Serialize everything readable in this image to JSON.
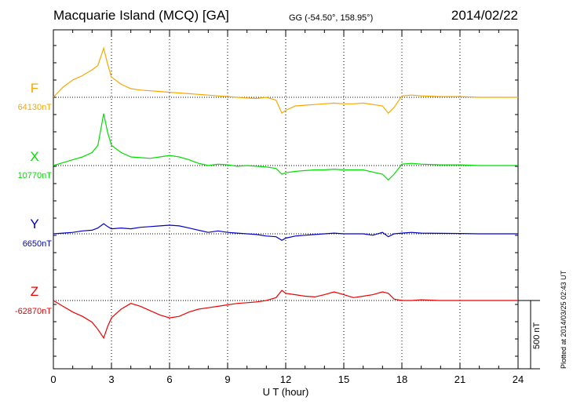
{
  "header": {
    "title": "Macquarie Island (MCQ)  [GA]",
    "coords": "GG (-54.50°, 158.95°)",
    "date": "2014/02/22"
  },
  "plotted_note": "Plotted at 2014/03/25 02:43 UT",
  "scale_label": "500 nT",
  "colors": {
    "F": "#f5a800",
    "X": "#00dd00",
    "Y": "#0000cc",
    "Z": "#ee0000"
  },
  "chart_data": {
    "type": "line",
    "xlabel": "U T (hour)",
    "xlim": [
      0,
      24
    ],
    "x_ticks": [
      0,
      3,
      6,
      9,
      12,
      15,
      18,
      21,
      24
    ],
    "scale_nT": 500,
    "channels": [
      {
        "name": "F",
        "baseline_label": "64130nT",
        "color": "#f5a800",
        "x": [
          0,
          0.5,
          1,
          1.5,
          2,
          2.3,
          2.6,
          2.8,
          3,
          3.5,
          4,
          4.5,
          5,
          5.5,
          6,
          6.5,
          7,
          7.5,
          8,
          8.5,
          9,
          9.5,
          10,
          10.5,
          11,
          11.5,
          11.8,
          12,
          12.5,
          13,
          13.5,
          14,
          14.5,
          15,
          15.5,
          16,
          16.5,
          17,
          17.3,
          17.6,
          18,
          18.5,
          19,
          20,
          21,
          22,
          23,
          24
        ],
        "y": [
          0,
          70,
          120,
          150,
          190,
          220,
          340,
          230,
          140,
          90,
          60,
          50,
          45,
          40,
          35,
          30,
          25,
          20,
          15,
          10,
          5,
          0,
          -5,
          -8,
          0,
          -20,
          -110,
          -90,
          -60,
          -55,
          -50,
          -45,
          -40,
          -45,
          -45,
          -40,
          -50,
          -60,
          -110,
          -70,
          10,
          15,
          10,
          5,
          5,
          0,
          0,
          0
        ]
      },
      {
        "name": "X",
        "baseline_label": "10770nT",
        "color": "#00dd00",
        "x": [
          0,
          0.5,
          1,
          1.5,
          2,
          2.3,
          2.6,
          2.8,
          3,
          3.5,
          4,
          4.5,
          5,
          5.5,
          6,
          6.5,
          7,
          7.5,
          8,
          8.5,
          9,
          9.5,
          10,
          10.5,
          11,
          11.5,
          11.8,
          12,
          12.5,
          13,
          13.5,
          14,
          14.5,
          15,
          15.5,
          16,
          16.5,
          17,
          17.3,
          17.6,
          18,
          18.5,
          19,
          20,
          21,
          22,
          23,
          24
        ],
        "y": [
          0,
          20,
          40,
          60,
          90,
          140,
          360,
          230,
          140,
          90,
          60,
          55,
          50,
          60,
          70,
          60,
          40,
          15,
          0,
          10,
          5,
          -5,
          0,
          -5,
          -10,
          -20,
          -60,
          -50,
          -40,
          -35,
          -30,
          -30,
          -25,
          -30,
          -30,
          -30,
          -45,
          -60,
          -100,
          -60,
          10,
          15,
          10,
          5,
          5,
          0,
          0,
          0
        ]
      },
      {
        "name": "Y",
        "baseline_label": "6650nT",
        "color": "#0000cc",
        "x": [
          0,
          0.5,
          1,
          1.5,
          2,
          2.3,
          2.6,
          2.8,
          3,
          3.5,
          4,
          4.5,
          5,
          5.5,
          6,
          6.5,
          7,
          7.5,
          8,
          8.5,
          9,
          9.5,
          10,
          10.5,
          11,
          11.5,
          11.8,
          12,
          12.5,
          13,
          13.5,
          14,
          14.5,
          15,
          15.5,
          16,
          16.5,
          17,
          17.3,
          17.6,
          18,
          18.5,
          19,
          20,
          21,
          22,
          23,
          24
        ],
        "y": [
          0,
          5,
          10,
          20,
          25,
          40,
          70,
          50,
          35,
          40,
          35,
          45,
          50,
          55,
          60,
          55,
          40,
          25,
          10,
          20,
          10,
          5,
          0,
          -5,
          -15,
          -20,
          -45,
          -30,
          -15,
          -10,
          -5,
          0,
          5,
          0,
          0,
          0,
          -10,
          10,
          -20,
          0,
          5,
          10,
          5,
          3,
          2,
          0,
          0,
          0
        ]
      },
      {
        "name": "Z",
        "baseline_label": "-62870nT",
        "color": "#ee0000",
        "x": [
          0,
          0.5,
          1,
          1.5,
          2,
          2.3,
          2.6,
          2.8,
          3,
          3.5,
          4,
          4.5,
          5,
          5.5,
          6,
          6.5,
          7,
          7.5,
          8,
          8.5,
          9,
          9.5,
          10,
          10.5,
          11,
          11.5,
          11.8,
          12,
          12.5,
          13,
          13.5,
          14,
          14.5,
          15,
          15.5,
          16,
          16.5,
          17,
          17.3,
          17.6,
          18,
          18.5,
          19,
          20,
          21,
          22,
          23,
          24
        ],
        "y": [
          0,
          -40,
          -80,
          -110,
          -150,
          -200,
          -260,
          -180,
          -120,
          -60,
          -20,
          -40,
          -70,
          -100,
          -120,
          -110,
          -80,
          -60,
          -50,
          -40,
          -30,
          -20,
          -15,
          -10,
          0,
          20,
          70,
          50,
          40,
          30,
          25,
          40,
          60,
          40,
          20,
          30,
          40,
          60,
          50,
          10,
          0,
          0,
          5,
          0,
          0,
          0,
          0,
          0
        ]
      }
    ]
  }
}
